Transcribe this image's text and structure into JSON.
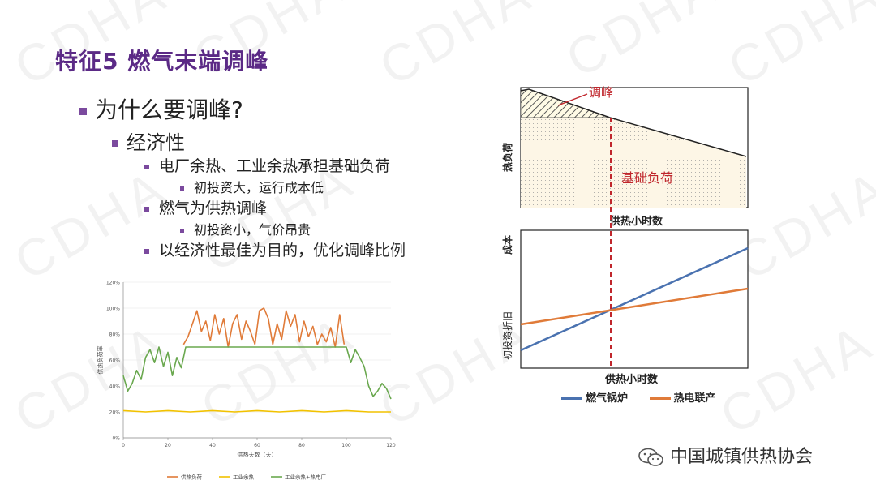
{
  "watermark": "CDHA",
  "title": "特征5 燃气末端调峰",
  "bullets": {
    "q": "为什么要调峰?",
    "econ": "经济性",
    "b1": "电厂余热、工业余热承担基础负荷",
    "b1a": "初投资大，运行成本低",
    "b2": "燃气为供热调峰",
    "b2a": "初投资小，气价昂贵",
    "b3": "以经济性最佳为目的，优化调峰比例"
  },
  "footer": "中国城镇供热协会",
  "colors": {
    "purple": "#5b2a86",
    "orange": "#e07b39",
    "yellow": "#f2c200",
    "green": "#6aa84f",
    "blue": "#4a72b0",
    "red": "#c0262c"
  },
  "chart_data": [
    {
      "type": "line",
      "xlabel": "供热天数（天）",
      "ylabel": "供热负荷率",
      "xlim": [
        0,
        120
      ],
      "ylim": [
        0,
        120
      ],
      "x_ticks": [
        "0",
        "20",
        "40",
        "60",
        "80",
        "100",
        "120"
      ],
      "y_ticks": [
        "0%",
        "20%",
        "40%",
        "60%",
        "80%",
        "100%",
        "120%"
      ],
      "legend_position": "bottom",
      "series": [
        {
          "name": "供热负荷",
          "x": [
            27,
            29,
            31,
            33,
            35,
            37,
            39,
            41,
            43,
            45,
            47,
            49,
            51,
            53,
            55,
            57,
            59,
            61,
            63,
            65,
            67,
            69,
            71,
            73,
            75,
            77,
            79,
            81,
            83,
            85,
            87,
            89,
            91,
            93,
            95,
            97,
            99
          ],
          "values": [
            72,
            78,
            88,
            98,
            82,
            90,
            75,
            95,
            80,
            92,
            70,
            88,
            95,
            76,
            90,
            82,
            72,
            98,
            100,
            92,
            72,
            88,
            76,
            98,
            86,
            95,
            74,
            90,
            78,
            86,
            72,
            80,
            74,
            85,
            70,
            95,
            72
          ]
        },
        {
          "name": "工业余热",
          "x": [
            0,
            10,
            20,
            30,
            40,
            50,
            60,
            70,
            80,
            90,
            100,
            110,
            120
          ],
          "values": [
            21,
            20,
            21,
            20,
            21,
            20,
            21,
            20,
            21,
            20,
            21,
            20,
            20
          ]
        },
        {
          "name": "工业余热+热电厂",
          "x": [
            0,
            2,
            4,
            6,
            8,
            10,
            12,
            14,
            16,
            18,
            20,
            22,
            24,
            26,
            28,
            30,
            40,
            50,
            60,
            70,
            80,
            90,
            100,
            102,
            104,
            106,
            108,
            110,
            112,
            114,
            116,
            118,
            120
          ],
          "values": [
            48,
            36,
            42,
            52,
            45,
            62,
            68,
            58,
            70,
            55,
            66,
            48,
            62,
            54,
            70,
            70,
            70,
            70,
            70,
            70,
            70,
            70,
            70,
            58,
            68,
            62,
            55,
            40,
            32,
            36,
            42,
            38,
            30
          ]
        }
      ]
    },
    {
      "type": "area",
      "ylabel": "热负荷",
      "xlabel": "供热小时数",
      "annotations": {
        "peak": "调峰",
        "base": "基础负荷"
      }
    },
    {
      "type": "line",
      "ylabel": "成本",
      "y_intercept_label": "初投资折旧",
      "xlabel": "供热小时数",
      "series": [
        {
          "name": "燃气锅炉",
          "color": "#4a72b0"
        },
        {
          "name": "热电联产",
          "color": "#e07b39"
        }
      ]
    }
  ]
}
